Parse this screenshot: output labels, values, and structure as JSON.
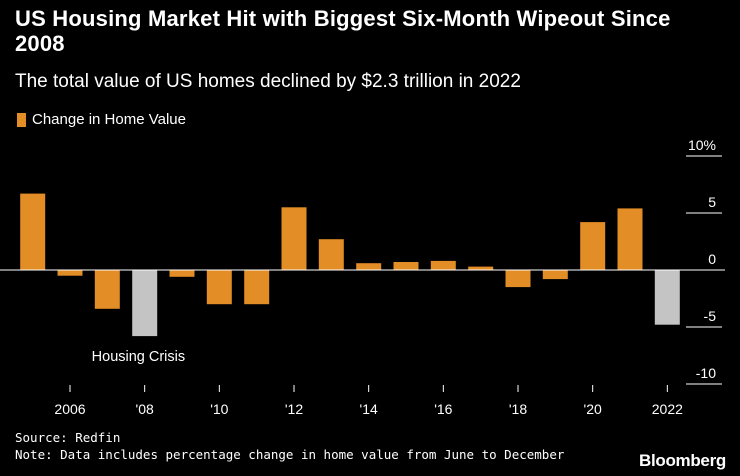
{
  "header": {
    "title": "US Housing Market Hit with Biggest Six-Month Wipeout Since 2008",
    "subtitle": "The total value of US homes declined by $2.3 trillion in 2022"
  },
  "legend": {
    "label": "Change in Home Value"
  },
  "annotation": {
    "label": "Housing Crisis"
  },
  "footer": {
    "source": "Source: Redfin",
    "note": "Note: Data includes percentage change in home value from June to December",
    "brand": "Bloomberg"
  },
  "colors": {
    "positive": "#e38d26",
    "highlight": "#c4c4c4",
    "background": "#000000",
    "text": "#ffffff"
  },
  "chart_data": {
    "type": "bar",
    "title": "US Housing Market Hit with Biggest Six-Month Wipeout Since 2008",
    "subtitle": "The total value of US homes declined by $2.3 trillion in 2022",
    "xlabel": "",
    "ylabel": "",
    "ylim": [
      -10,
      10
    ],
    "yticks": [
      10,
      5,
      0,
      -5,
      -10
    ],
    "ytick_labels": [
      "10%",
      "5",
      "0",
      "-5",
      "-10"
    ],
    "categories": [
      "2005",
      "2006",
      "2007",
      "2008",
      "2009",
      "2010",
      "2011",
      "2012",
      "2013",
      "2014",
      "2015",
      "2016",
      "2017",
      "2018",
      "2019",
      "2020",
      "2021",
      "2022"
    ],
    "xtick_labels": [
      "2006",
      "'08",
      "'10",
      "'12",
      "'14",
      "'16",
      "'18",
      "'20",
      "2022"
    ],
    "series": [
      {
        "name": "Change in Home Value",
        "values": [
          6.7,
          -0.5,
          -3.4,
          -5.8,
          -0.6,
          -3.0,
          -3.0,
          5.5,
          2.7,
          0.6,
          0.7,
          0.8,
          0.3,
          -1.5,
          -0.8,
          4.2,
          5.4,
          -4.8
        ],
        "highlighted": [
          "2008",
          "2022"
        ]
      }
    ],
    "annotations": [
      {
        "text": "Housing Crisis",
        "x": "2008"
      }
    ],
    "grid": false,
    "legend": "top-left"
  }
}
